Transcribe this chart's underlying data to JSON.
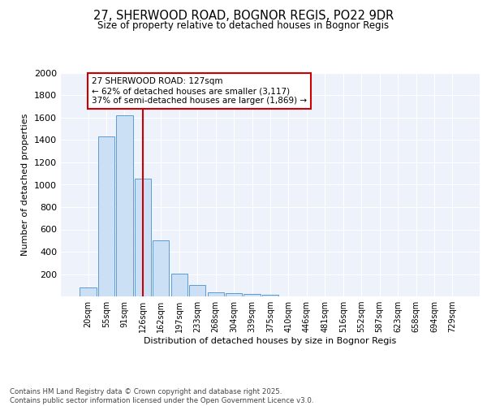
{
  "title_line1": "27, SHERWOOD ROAD, BOGNOR REGIS, PO22 9DR",
  "title_line2": "Size of property relative to detached houses in Bognor Regis",
  "xlabel": "Distribution of detached houses by size in Bognor Regis",
  "ylabel": "Number of detached properties",
  "bar_labels": [
    "20sqm",
    "55sqm",
    "91sqm",
    "126sqm",
    "162sqm",
    "197sqm",
    "233sqm",
    "268sqm",
    "304sqm",
    "339sqm",
    "375sqm",
    "410sqm",
    "446sqm",
    "481sqm",
    "516sqm",
    "552sqm",
    "587sqm",
    "623sqm",
    "658sqm",
    "694sqm",
    "729sqm"
  ],
  "bar_values": [
    80,
    1430,
    1620,
    1055,
    500,
    205,
    105,
    38,
    28,
    22,
    18,
    0,
    0,
    0,
    0,
    0,
    0,
    0,
    0,
    0,
    0
  ],
  "bar_color": "#cce0f5",
  "bar_edge_color": "#5b9bd5",
  "vline_x_index": 3,
  "vline_color": "#cc0000",
  "annotation_text": "27 SHERWOOD ROAD: 127sqm\n← 62% of detached houses are smaller (3,117)\n37% of semi-detached houses are larger (1,869) →",
  "annotation_box_color": "#ffffff",
  "annotation_box_edge": "#cc0000",
  "ylim": [
    0,
    2000
  ],
  "yticks": [
    0,
    200,
    400,
    600,
    800,
    1000,
    1200,
    1400,
    1600,
    1800,
    2000
  ],
  "bg_color": "#eef2fb",
  "grid_color": "#ffffff",
  "footer_text": "Contains HM Land Registry data © Crown copyright and database right 2025.\nContains public sector information licensed under the Open Government Licence v3.0."
}
